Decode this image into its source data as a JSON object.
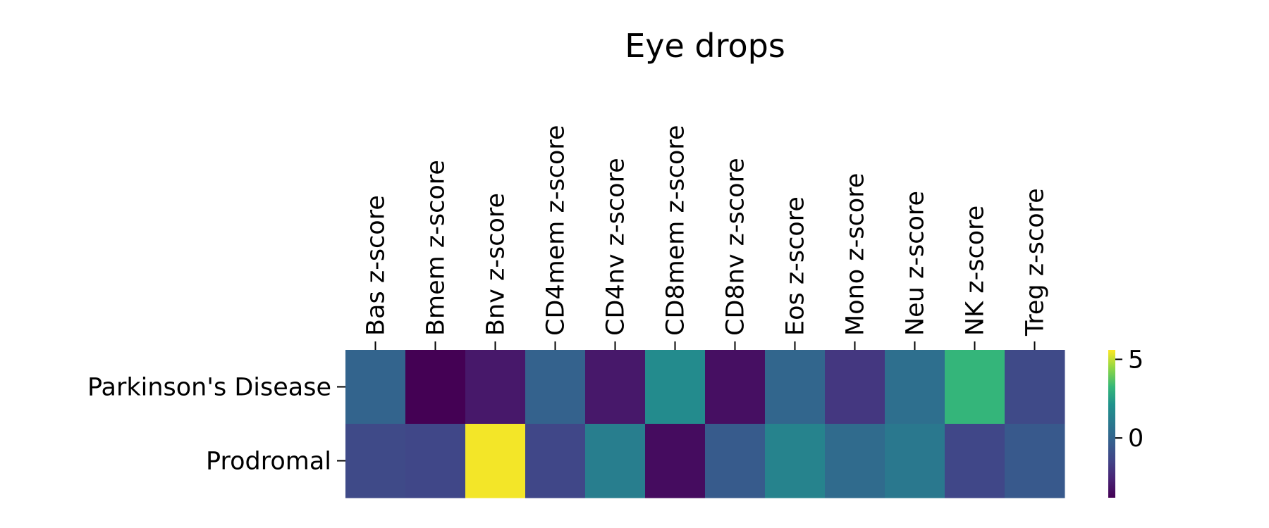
{
  "chart_data": {
    "type": "heatmap",
    "title": "Eye drops",
    "xlabel": "",
    "ylabel": "",
    "x_axis_position": "top",
    "columns": [
      "Bas z-score",
      "Bmem z-score",
      "Bnv z-score",
      "CD4mem z-score",
      "CD4nv z-score",
      "CD8mem z-score",
      "CD8nv z-score",
      "Eos z-score",
      "Mono z-score",
      "Neu z-score",
      "NK z-score",
      "Treg z-score"
    ],
    "rows": [
      "Parkinson's Disease",
      "Prodromal"
    ],
    "values": [
      [
        0.0,
        -3.8,
        -3.0,
        -0.1,
        -3.0,
        1.8,
        -3.3,
        0.1,
        -1.9,
        0.5,
        3.2,
        -1.2
      ],
      [
        -1.2,
        -1.3,
        5.5,
        -1.3,
        1.2,
        -3.4,
        -0.4,
        1.4,
        0.3,
        0.9,
        -1.3,
        -0.5
      ]
    ],
    "colormap": "viridis",
    "colorbar": {
      "vmin": -3.8,
      "vmax": 5.6,
      "ticks": [
        0,
        5
      ],
      "tick_labels": [
        "0",
        "5"
      ]
    },
    "grid": false,
    "legend": "colorbar-right"
  }
}
